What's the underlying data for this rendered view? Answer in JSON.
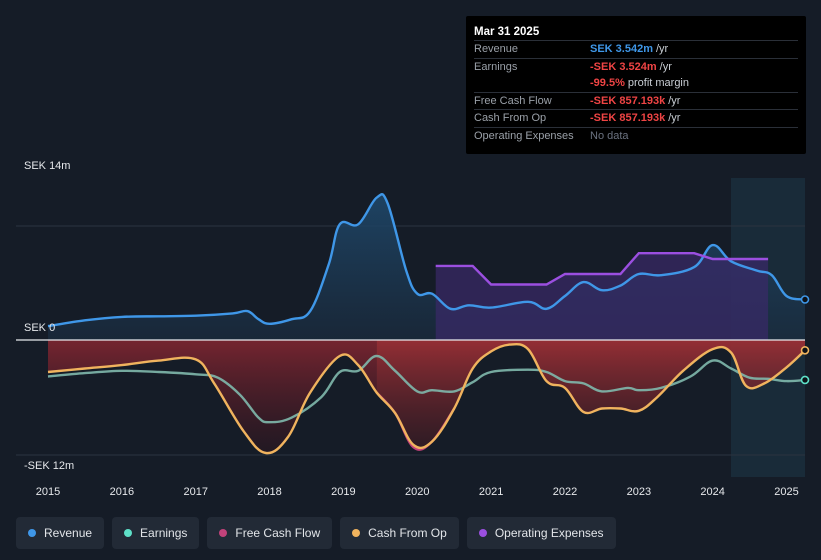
{
  "tooltip": {
    "date": "Mar 31 2025",
    "rows": [
      {
        "label": "Revenue",
        "value": "SEK 3.542m",
        "unit": "/yr"
      },
      {
        "label": "Earnings",
        "value": "-SEK 3.524m",
        "unit": "/yr"
      },
      {
        "label": "",
        "value": "-99.5%",
        "unit": "profit margin"
      },
      {
        "label": "Free Cash Flow",
        "value": "-SEK 857.193k",
        "unit": "/yr"
      },
      {
        "label": "Cash From Op",
        "value": "-SEK 857.193k",
        "unit": "/yr"
      },
      {
        "label": "Operating Expenses",
        "value": "No data",
        "unit": ""
      }
    ]
  },
  "legend": [
    {
      "label": "Revenue",
      "color": "#3f97e8"
    },
    {
      "label": "Earnings",
      "color": "#5ee0c8"
    },
    {
      "label": "Free Cash Flow",
      "color": "#c2427a"
    },
    {
      "label": "Cash From Op",
      "color": "#f0b35e"
    },
    {
      "label": "Operating Expenses",
      "color": "#9b4fe0"
    }
  ],
  "chart_data": {
    "type": "line",
    "y_top_label": "SEK 14m",
    "y_zero_label": "SEK 0",
    "y_bottom_label": "-SEK 12m",
    "ylim": [
      -12,
      14
    ],
    "xlim": [
      2015,
      2025.25
    ],
    "x_ticks": [
      "2015",
      "2016",
      "2017",
      "2018",
      "2019",
      "2020",
      "2021",
      "2022",
      "2023",
      "2024",
      "2025"
    ],
    "series": [
      {
        "name": "Revenue",
        "color": "#3f97e8",
        "points": [
          [
            2015,
            1.2
          ],
          [
            2015.5,
            1.7
          ],
          [
            2016,
            2.0
          ],
          [
            2016.5,
            2.05
          ],
          [
            2017,
            2.1
          ],
          [
            2017.5,
            2.3
          ],
          [
            2017.7,
            2.5
          ],
          [
            2017.85,
            1.8
          ],
          [
            2018,
            1.4
          ],
          [
            2018.3,
            1.8
          ],
          [
            2018.55,
            2.5
          ],
          [
            2018.8,
            6.5
          ],
          [
            2018.95,
            10.0
          ],
          [
            2019.2,
            10.0
          ],
          [
            2019.45,
            12.3
          ],
          [
            2019.6,
            11.8
          ],
          [
            2019.85,
            6.0
          ],
          [
            2020,
            4.0
          ],
          [
            2020.2,
            4.0
          ],
          [
            2020.45,
            2.7
          ],
          [
            2020.7,
            3.0
          ],
          [
            2021,
            2.8
          ],
          [
            2021.5,
            3.3
          ],
          [
            2021.75,
            2.7
          ],
          [
            2022,
            3.8
          ],
          [
            2022.25,
            5.0
          ],
          [
            2022.5,
            4.3
          ],
          [
            2022.75,
            4.7
          ],
          [
            2023,
            5.7
          ],
          [
            2023.3,
            5.6
          ],
          [
            2023.75,
            6.3
          ],
          [
            2024,
            8.2
          ],
          [
            2024.25,
            6.8
          ],
          [
            2024.6,
            6.0
          ],
          [
            2024.8,
            5.6
          ],
          [
            2025,
            3.8
          ],
          [
            2025.25,
            3.5
          ]
        ]
      },
      {
        "name": "Earnings",
        "color": "#5ee0c8",
        "points": [
          [
            2015,
            -3.2
          ],
          [
            2015.5,
            -2.9
          ],
          [
            2016,
            -2.7
          ],
          [
            2016.5,
            -2.8
          ],
          [
            2017,
            -3.0
          ],
          [
            2017.3,
            -3.3
          ],
          [
            2017.6,
            -4.8
          ],
          [
            2017.85,
            -6.8
          ],
          [
            2018,
            -7.2
          ],
          [
            2018.3,
            -6.8
          ],
          [
            2018.7,
            -5.0
          ],
          [
            2018.95,
            -2.8
          ],
          [
            2019.2,
            -2.7
          ],
          [
            2019.45,
            -1.4
          ],
          [
            2019.7,
            -2.7
          ],
          [
            2020,
            -4.5
          ],
          [
            2020.2,
            -4.4
          ],
          [
            2020.5,
            -4.5
          ],
          [
            2020.75,
            -3.7
          ],
          [
            2021,
            -2.8
          ],
          [
            2021.5,
            -2.6
          ],
          [
            2021.75,
            -2.8
          ],
          [
            2022,
            -3.6
          ],
          [
            2022.25,
            -3.8
          ],
          [
            2022.5,
            -4.5
          ],
          [
            2022.85,
            -4.2
          ],
          [
            2023,
            -4.4
          ],
          [
            2023.3,
            -4.2
          ],
          [
            2023.7,
            -3.2
          ],
          [
            2024,
            -1.8
          ],
          [
            2024.25,
            -2.5
          ],
          [
            2024.5,
            -3.3
          ],
          [
            2024.75,
            -3.4
          ],
          [
            2025,
            -3.6
          ],
          [
            2025.25,
            -3.5
          ]
        ]
      },
      {
        "name": "Free Cash Flow",
        "color": "#c2427a",
        "points": [
          [
            2019.45,
            -4.6
          ],
          [
            2019.7,
            -6.4
          ],
          [
            2019.95,
            -9.4
          ],
          [
            2020.2,
            -8.9
          ],
          [
            2020.5,
            -6.0
          ]
        ]
      },
      {
        "name": "Cash From Op",
        "color": "#f0b35e",
        "points": [
          [
            2015,
            -2.8
          ],
          [
            2015.5,
            -2.5
          ],
          [
            2016,
            -2.2
          ],
          [
            2016.5,
            -1.8
          ],
          [
            2017,
            -1.7
          ],
          [
            2017.25,
            -3.8
          ],
          [
            2017.65,
            -8.0
          ],
          [
            2017.95,
            -9.9
          ],
          [
            2018.25,
            -8.5
          ],
          [
            2018.55,
            -4.6
          ],
          [
            2018.95,
            -1.4
          ],
          [
            2019.2,
            -2.2
          ],
          [
            2019.45,
            -4.6
          ],
          [
            2019.7,
            -6.4
          ],
          [
            2019.95,
            -9.2
          ],
          [
            2020.2,
            -8.9
          ],
          [
            2020.5,
            -6.0
          ],
          [
            2020.75,
            -2.5
          ],
          [
            2021,
            -1.0
          ],
          [
            2021.25,
            -0.4
          ],
          [
            2021.5,
            -0.8
          ],
          [
            2021.75,
            -3.6
          ],
          [
            2022,
            -4.2
          ],
          [
            2022.25,
            -6.3
          ],
          [
            2022.5,
            -6.0
          ],
          [
            2022.75,
            -6.0
          ],
          [
            2023,
            -6.2
          ],
          [
            2023.25,
            -5.0
          ],
          [
            2023.6,
            -2.7
          ],
          [
            2024,
            -0.8
          ],
          [
            2024.25,
            -1.1
          ],
          [
            2024.45,
            -4.0
          ],
          [
            2024.7,
            -3.8
          ],
          [
            2025,
            -2.4
          ],
          [
            2025.25,
            -0.9
          ]
        ]
      },
      {
        "name": "Operating Expenses",
        "color": "#9b4fe0",
        "points": [
          [
            2020.25,
            6.4
          ],
          [
            2020.75,
            6.4
          ],
          [
            2021,
            4.8
          ],
          [
            2021.75,
            4.8
          ],
          [
            2022,
            5.7
          ],
          [
            2022.75,
            5.7
          ],
          [
            2023,
            7.5
          ],
          [
            2023.75,
            7.5
          ],
          [
            2024,
            7.0
          ],
          [
            2024.75,
            7.0
          ]
        ]
      }
    ]
  }
}
